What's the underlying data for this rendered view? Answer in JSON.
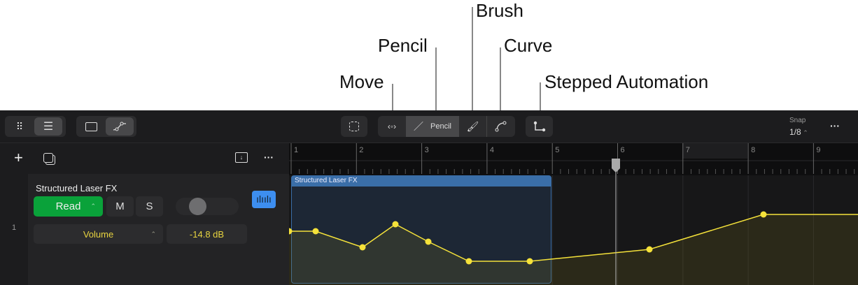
{
  "annotations": {
    "move": "Move",
    "pencil": "Pencil",
    "brush": "Brush",
    "curve": "Curve",
    "stepped": "Stepped Automation"
  },
  "toolbar": {
    "pencil_label": "Pencil",
    "snap_label": "Snap",
    "snap_value": "1/8"
  },
  "track": {
    "number": "1",
    "name": "Structured Laser FX",
    "automation_mode": "Read",
    "mute": "M",
    "solo": "S",
    "parameter": "Volume",
    "value": "-14.8 dB"
  },
  "region": {
    "name": "Structured Laser FX"
  },
  "ruler": {
    "bars": [
      "1",
      "2",
      "3",
      "4",
      "5",
      "6",
      "7",
      "8",
      "9"
    ]
  },
  "colors": {
    "read": "#0aa23a",
    "automation": "#f5e23a",
    "region": "#3a6ea8",
    "accent": "#3d8ef0"
  }
}
